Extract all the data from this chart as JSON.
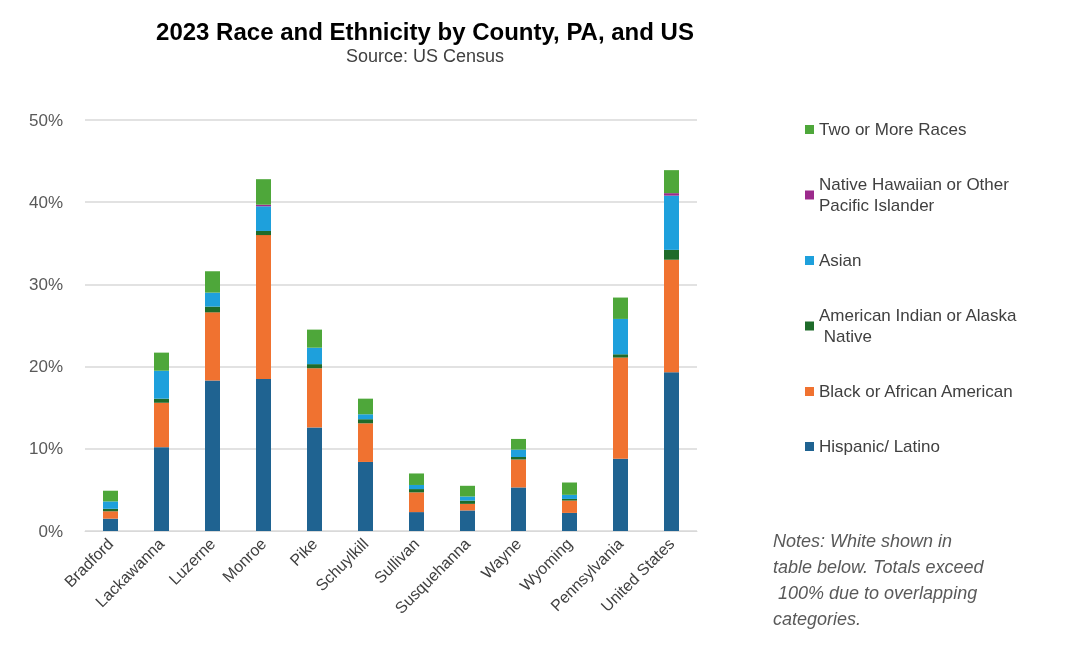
{
  "chart_data": {
    "type": "bar",
    "title": "2023 Race and Ethnicity by County, PA, and US",
    "subtitle": "Source: US Census",
    "categories": [
      "Bradford",
      "Lackawanna",
      "Luzerne",
      "Monroe",
      "Pike",
      "Schuylkill",
      "Sullivan",
      "Susquehanna",
      "Wayne",
      "Wyoming",
      "Pennsylvania",
      "United States"
    ],
    "series": [
      {
        "name": "Hispanic/ Latino",
        "color": "#1f6391",
        "values": [
          1.5,
          10.2,
          18.3,
          18.5,
          12.6,
          8.4,
          2.3,
          2.5,
          5.3,
          2.2,
          8.8,
          19.3
        ]
      },
      {
        "name": "Black or African American",
        "color": "#f07230",
        "values": [
          0.9,
          5.4,
          8.3,
          17.5,
          7.2,
          4.7,
          2.4,
          0.8,
          3.4,
          1.5,
          12.3,
          13.7
        ]
      },
      {
        "name": "American Indian or Alaska Native",
        "color": "#1e6b2a",
        "values": [
          0.3,
          0.5,
          0.7,
          0.5,
          0.5,
          0.5,
          0.4,
          0.4,
          0.3,
          0.2,
          0.4,
          1.2
        ]
      },
      {
        "name": "Asian",
        "color": "#1ea0dc",
        "values": [
          0.9,
          3.4,
          1.7,
          3.0,
          2.0,
          0.6,
          0.5,
          0.5,
          0.9,
          0.5,
          4.3,
          6.6
        ]
      },
      {
        "name": "Native Hawaiian or Other Pacific Islander",
        "color": "#9c2a8c",
        "values": [
          0,
          0,
          0,
          0.2,
          0,
          0,
          0,
          0,
          0,
          0,
          0,
          0.3
        ]
      },
      {
        "name": "Two or More Races",
        "color": "#4ea73a",
        "values": [
          1.3,
          2.2,
          2.6,
          3.1,
          2.2,
          1.9,
          1.4,
          1.3,
          1.3,
          1.5,
          2.6,
          2.8
        ]
      }
    ],
    "stacked": true,
    "ylim": [
      0,
      50
    ],
    "yticks": [
      {
        "value": 0,
        "label": "0%"
      },
      {
        "value": 10,
        "label": "10%"
      },
      {
        "value": 20,
        "label": "20%"
      },
      {
        "value": 30,
        "label": "30%"
      },
      {
        "value": 40,
        "label": "40%"
      },
      {
        "value": 50,
        "label": "50%"
      }
    ],
    "grid": "y",
    "legend": "right",
    "annotations": [
      "Notes: White shown in table below. Totals exceed 100% due to overlapping categories."
    ]
  }
}
